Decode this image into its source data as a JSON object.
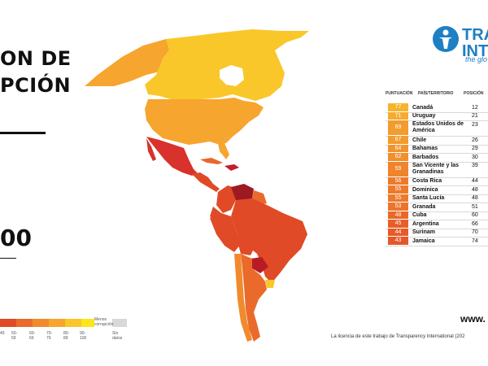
{
  "title": {
    "line1": "ON DE",
    "line2": "PCIÓN"
  },
  "score_big": "00",
  "legend": {
    "labels": [
      "49",
      "50-59",
      "60-69",
      "70-79",
      "80-89",
      "90-100"
    ],
    "less_corrupt": "Menos corrupción",
    "no_data": "Sin datos",
    "colors": [
      "#e04a26",
      "#ea6a2b",
      "#f18a2d",
      "#f6a52f",
      "#f9c72a",
      "#fbe51c"
    ],
    "no_data_color": "#d8d8d8"
  },
  "logo": {
    "line1": "TRA",
    "line2": "INT",
    "tagline": "the glo",
    "color": "#1f7fc4"
  },
  "table": {
    "headers": {
      "score": "PUNTUACIÓN",
      "country": "PAÍS/TERRITORIO",
      "rank": "POSICIÓN"
    },
    "rows": [
      {
        "score": "77",
        "country": "Canadá",
        "rank": "12",
        "color": "#f6b42e"
      },
      {
        "score": "71",
        "country": "Uruguay",
        "rank": "21",
        "color": "#f5ab2f"
      },
      {
        "score": "69",
        "country": "Estados Unidos de América",
        "rank": "23",
        "color": "#f29c2e"
      },
      {
        "score": "67",
        "country": "Chile",
        "rank": "26",
        "color": "#f29c2e"
      },
      {
        "score": "64",
        "country": "Bahamas",
        "rank": "29",
        "color": "#f2942d"
      },
      {
        "score": "62",
        "country": "Barbados",
        "rank": "30",
        "color": "#f18f2d"
      },
      {
        "score": "59",
        "country": "San Vicente y las Granadinas",
        "rank": "39",
        "color": "#ef842c"
      },
      {
        "score": "56",
        "country": "Costa Rica",
        "rank": "44",
        "color": "#ed7a2b"
      },
      {
        "score": "55",
        "country": "Dominica",
        "rank": "48",
        "color": "#ed7a2b"
      },
      {
        "score": "55",
        "country": "Santa Lucía",
        "rank": "48",
        "color": "#ed7a2b"
      },
      {
        "score": "53",
        "country": "Granada",
        "rank": "51",
        "color": "#ec752b"
      },
      {
        "score": "48",
        "country": "Cuba",
        "rank": "60",
        "color": "#e9672a"
      },
      {
        "score": "45",
        "country": "Argentina",
        "rank": "66",
        "color": "#e85e29"
      },
      {
        "score": "44",
        "country": "Surinam",
        "rank": "70",
        "color": "#e75a29"
      },
      {
        "score": "43",
        "country": "Jamaica",
        "rank": "74",
        "color": "#e65628"
      }
    ]
  },
  "website": "www.",
  "license": "La licencia de este trabajo de Transparency International (202"
}
